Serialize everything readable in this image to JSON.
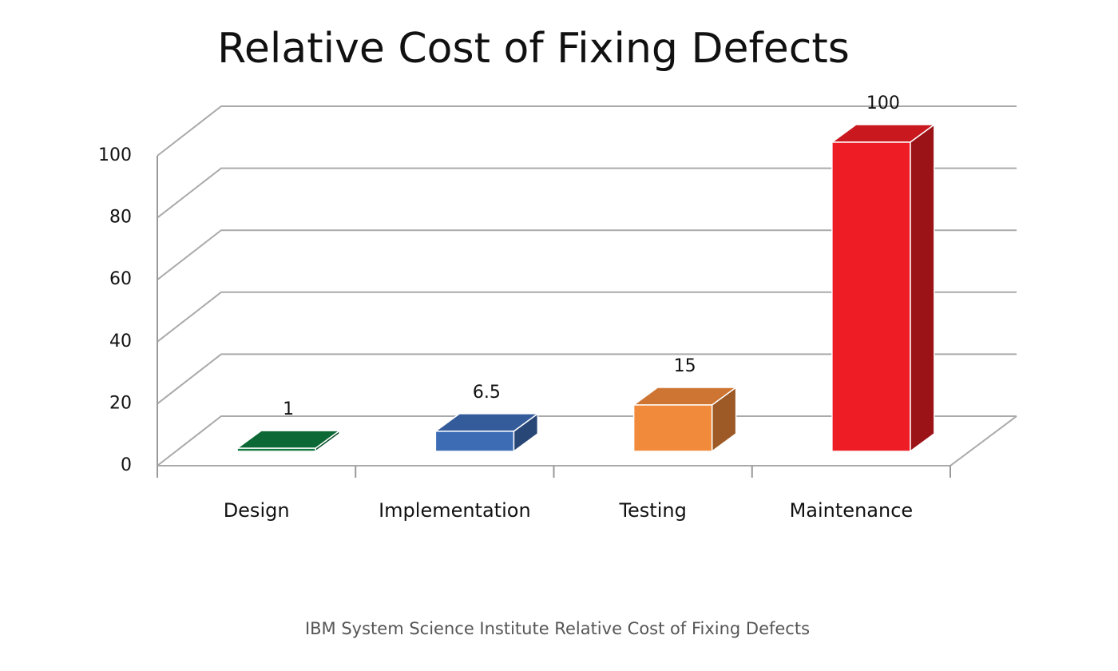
{
  "chart_data": {
    "type": "bar",
    "title": "Relative Cost of Fixing Defects",
    "categories": [
      "Design",
      "Implementation",
      "Testing",
      "Maintenance"
    ],
    "values": [
      1,
      6.5,
      15,
      100
    ],
    "colors": [
      "#0e7a3e",
      "#3d6cb5",
      "#f28a3c",
      "#ee1c24"
    ],
    "ylim": [
      0,
      100
    ],
    "yticks": [
      0,
      20,
      40,
      60,
      80,
      100
    ],
    "grid": true
  },
  "caption": "IBM System Science Institute Relative Cost of Fixing Defects"
}
